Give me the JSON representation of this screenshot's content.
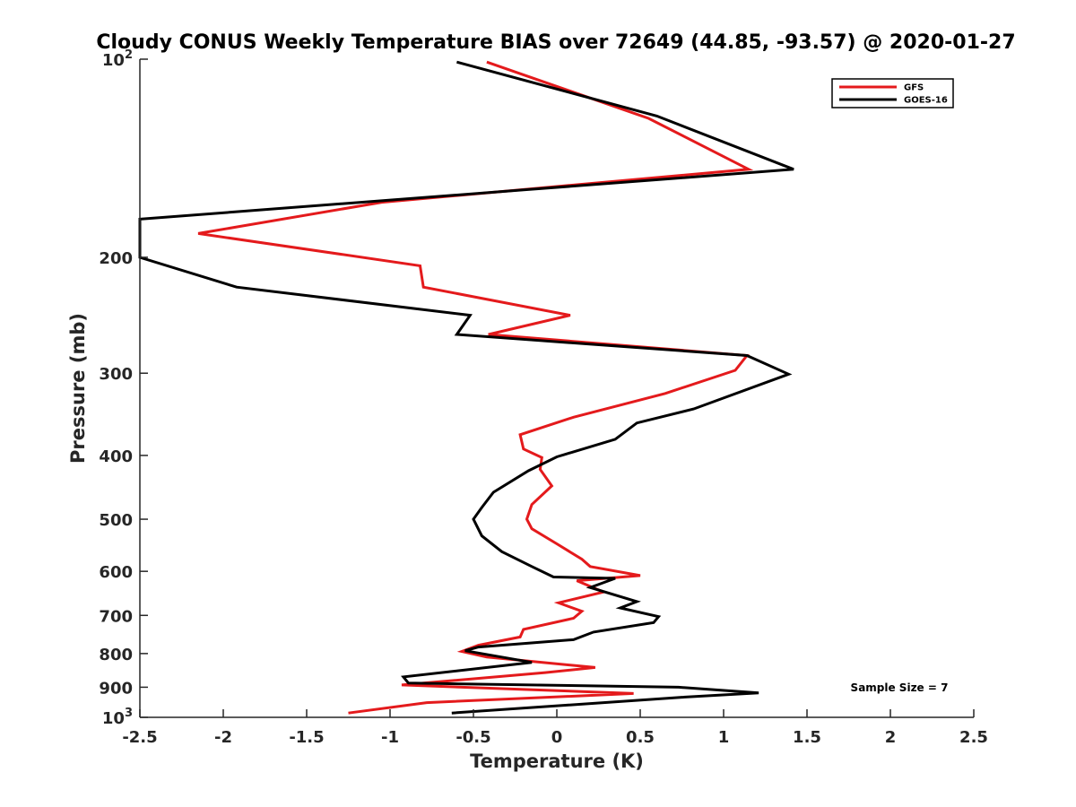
{
  "chart_data": {
    "type": "line",
    "title": "Cloudy CONUS Weekly Temperature BIAS over 72649 (44.85, -93.57) @ 2020-01-27",
    "xlabel": "Temperature (K)",
    "ylabel": "Pressure (mb)",
    "xlim": [
      -2.5,
      2.5
    ],
    "ylim": [
      100,
      1000
    ],
    "y_scale": "log",
    "y_reversed": true,
    "grid": false,
    "legend_position": "top-right",
    "x_ticks": [
      -2.5,
      -2,
      -1.5,
      -1,
      -0.5,
      0,
      0.5,
      1,
      1.5,
      2,
      2.5
    ],
    "x_tick_labels": [
      "-2.5",
      "-2",
      "-1.5",
      "-1",
      "-0.5",
      "0",
      "0.5",
      "1",
      "1.5",
      "2",
      "2.5"
    ],
    "y_ticks": [
      100,
      200,
      300,
      400,
      500,
      600,
      700,
      800,
      900,
      1000
    ],
    "y_tick_labels": [
      {
        "base": "10",
        "exp": "2"
      },
      {
        "base": "200",
        "exp": ""
      },
      {
        "base": "300",
        "exp": ""
      },
      {
        "base": "400",
        "exp": ""
      },
      {
        "base": "500",
        "exp": ""
      },
      {
        "base": "600",
        "exp": ""
      },
      {
        "base": "700",
        "exp": ""
      },
      {
        "base": "800",
        "exp": ""
      },
      {
        "base": "900",
        "exp": ""
      },
      {
        "base": "10",
        "exp": "3"
      }
    ],
    "annotation": "Sample Size = 7",
    "series": [
      {
        "name": "GFS",
        "color": "#e41a1c",
        "x": [
          -0.42,
          0.55,
          1.15,
          -1.05,
          -2.15,
          -0.82,
          -0.8,
          0.08,
          -0.41,
          1.14,
          1.07,
          0.65,
          0.1,
          -0.22,
          -0.2,
          -0.09,
          -0.1,
          -0.03,
          -0.15,
          -0.18,
          -0.15,
          0.0,
          0.15,
          0.2,
          0.5,
          0.12,
          0.28,
          0.01,
          0.15,
          0.1,
          -0.2,
          -0.22,
          -0.47,
          -0.57,
          -0.42,
          0.23,
          -0.07,
          -0.93,
          0.46,
          -0.78,
          -1.25
        ],
        "y": [
          101,
          123,
          147,
          165,
          184,
          206,
          222,
          245,
          262,
          282,
          297,
          322,
          350,
          372,
          391,
          403,
          420,
          445,
          475,
          500,
          517,
          545,
          575,
          590,
          609,
          620,
          645,
          670,
          690,
          707,
          735,
          755,
          777,
          794,
          810,
          840,
          855,
          893,
          920,
          950,
          985
        ]
      },
      {
        "name": "GOES-16",
        "color": "#000000",
        "x": [
          -0.6,
          0.6,
          1.42,
          -0.2,
          -2.5,
          -2.5,
          -1.92,
          -0.52,
          -0.6,
          1.14,
          1.39,
          0.82,
          0.48,
          0.35,
          0.0,
          -0.17,
          -0.38,
          -0.45,
          -0.5,
          -0.45,
          -0.33,
          -0.15,
          -0.02,
          0.35,
          0.2,
          0.48,
          0.38,
          0.61,
          0.58,
          0.22,
          0.1,
          -0.47,
          -0.55,
          -0.15,
          -0.92,
          -0.89,
          0.73,
          1.21,
          0.75,
          -0.63
        ],
        "y": [
          101,
          122,
          147,
          158,
          175,
          200,
          222,
          245,
          262,
          282,
          301,
          340,
          357,
          378,
          402,
          422,
          455,
          480,
          500,
          530,
          560,
          590,
          612,
          615,
          635,
          667,
          682,
          703,
          718,
          742,
          762,
          782,
          792,
          825,
          868,
          887,
          900,
          918,
          932,
          985
        ]
      }
    ]
  }
}
